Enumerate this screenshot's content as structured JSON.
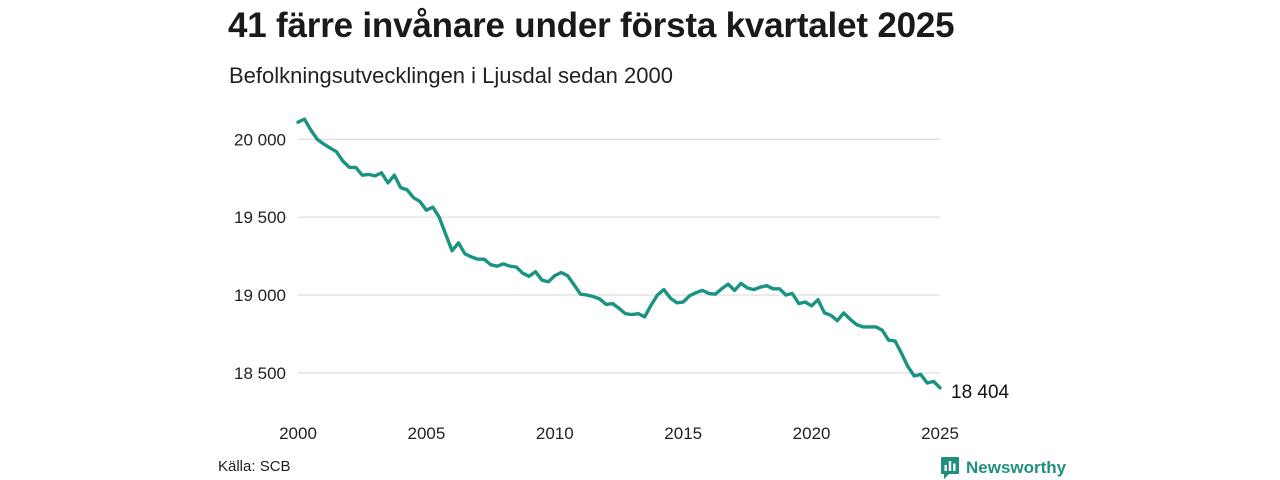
{
  "title": "41 färre invånare under första kvartalet 2025",
  "subtitle": "Befolkningsutvecklingen i Ljusdal sedan 2000",
  "source": "Källa: SCB",
  "brand": "Newsworthy",
  "colors": {
    "line": "#1a9382",
    "grid": "#dddddd",
    "brand": "#1f8f80"
  },
  "chart_data": {
    "type": "line",
    "xlim": [
      2000,
      2025
    ],
    "ylim": [
      18300,
      20150
    ],
    "x_ticks": [
      2000,
      2005,
      2010,
      2015,
      2020,
      2025
    ],
    "x_tick_labels": [
      "2000",
      "2005",
      "2010",
      "2015",
      "2020",
      "2025"
    ],
    "y_ticks": [
      18500,
      19000,
      19500,
      20000
    ],
    "y_tick_labels": [
      "18 500",
      "19 000",
      "19 500",
      "20 000"
    ],
    "grid": true,
    "end_label": "18 404",
    "series": [
      {
        "x": [
          2000.0,
          2000.25,
          2000.5,
          2000.75,
          2001.0,
          2001.25,
          2001.5,
          2001.75,
          2002.0,
          2002.25,
          2002.5,
          2002.75,
          2003.0,
          2003.25,
          2003.5,
          2003.75,
          2004.0,
          2004.25,
          2004.5,
          2004.75,
          2005.0,
          2005.25,
          2005.5,
          2005.75,
          2006.0,
          2006.25,
          2006.5,
          2006.75,
          2007.0,
          2007.25,
          2007.5,
          2007.75,
          2008.0,
          2008.25,
          2008.5,
          2008.75,
          2009.0,
          2009.25,
          2009.5,
          2009.75,
          2010.0,
          2010.25,
          2010.5,
          2010.75,
          2011.0,
          2011.25,
          2011.5,
          2011.75,
          2012.0,
          2012.25,
          2012.5,
          2012.75,
          2013.0,
          2013.25,
          2013.5,
          2013.75,
          2014.0,
          2014.25,
          2014.5,
          2014.75,
          2015.0,
          2015.25,
          2015.5,
          2015.75,
          2016.0,
          2016.25,
          2016.5,
          2016.75,
          2017.0,
          2017.25,
          2017.5,
          2017.75,
          2018.0,
          2018.25,
          2018.5,
          2018.75,
          2019.0,
          2019.25,
          2019.5,
          2019.75,
          2020.0,
          2020.25,
          2020.5,
          2020.75,
          2021.0,
          2021.25,
          2021.5,
          2021.75,
          2022.0,
          2022.25,
          2022.5,
          2022.75,
          2023.0,
          2023.25,
          2023.5,
          2023.75,
          2024.0,
          2024.25,
          2024.5,
          2024.75,
          2025.0
        ],
        "y": [
          20110,
          20130,
          20060,
          20000,
          19970,
          19945,
          19920,
          19860,
          19820,
          19820,
          19770,
          19775,
          19765,
          19785,
          19720,
          19770,
          19690,
          19675,
          19625,
          19600,
          19545,
          19565,
          19500,
          19390,
          19285,
          19335,
          19265,
          19245,
          19230,
          19230,
          19195,
          19185,
          19200,
          19185,
          19180,
          19140,
          19120,
          19150,
          19095,
          19085,
          19125,
          19145,
          19125,
          19065,
          19005,
          19000,
          18990,
          18975,
          18940,
          18945,
          18915,
          18880,
          18875,
          18880,
          18860,
          18935,
          19000,
          19035,
          18980,
          18950,
          18955,
          18995,
          19015,
          19030,
          19010,
          19005,
          19040,
          19070,
          19030,
          19075,
          19045,
          19035,
          19050,
          19060,
          19040,
          19040,
          19000,
          19010,
          18945,
          18955,
          18930,
          18970,
          18885,
          18870,
          18835,
          18885,
          18845,
          18810,
          18795,
          18795,
          18795,
          18775,
          18710,
          18705,
          18625,
          18540,
          18480,
          18490,
          18435,
          18445,
          18404
        ]
      }
    ]
  }
}
